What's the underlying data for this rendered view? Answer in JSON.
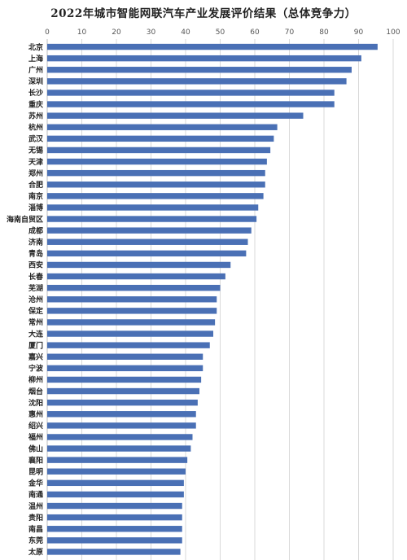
{
  "chart_data": {
    "type": "bar",
    "orientation": "horizontal",
    "title": "2022年城市智能网联汽车产业发展评价结果（总体竞争力）",
    "xlim": [
      0,
      100
    ],
    "xticks": [
      0,
      10,
      20,
      30,
      40,
      50,
      60,
      70,
      80,
      90,
      100
    ],
    "grid": true,
    "bar_color": "#4a70b5",
    "categories": [
      "北京",
      "上海",
      "广州",
      "深圳",
      "长沙",
      "重庆",
      "苏州",
      "杭州",
      "武汉",
      "无锡",
      "天津",
      "郑州",
      "合肥",
      "南京",
      "淄博",
      "海南自贸区",
      "成都",
      "济南",
      "青岛",
      "西安",
      "长春",
      "芜湖",
      "沧州",
      "保定",
      "常州",
      "大连",
      "厦门",
      "嘉兴",
      "宁波",
      "柳州",
      "烟台",
      "沈阳",
      "惠州",
      "绍兴",
      "福州",
      "佛山",
      "襄阳",
      "昆明",
      "金华",
      "南通",
      "温州",
      "贵阳",
      "南昌",
      "东莞",
      "太原"
    ],
    "values": [
      95.5,
      90.8,
      88,
      86.5,
      83,
      83,
      74,
      66.5,
      65.5,
      64.5,
      63.5,
      63,
      63,
      62.5,
      61,
      60.5,
      59,
      58,
      57.5,
      53,
      51.5,
      50,
      49,
      49,
      48.5,
      48,
      47,
      45,
      45,
      44.5,
      44,
      43.5,
      43,
      43,
      42,
      41.5,
      40.5,
      40,
      39.5,
      39.5,
      39,
      39,
      39,
      39,
      38.5
    ]
  }
}
